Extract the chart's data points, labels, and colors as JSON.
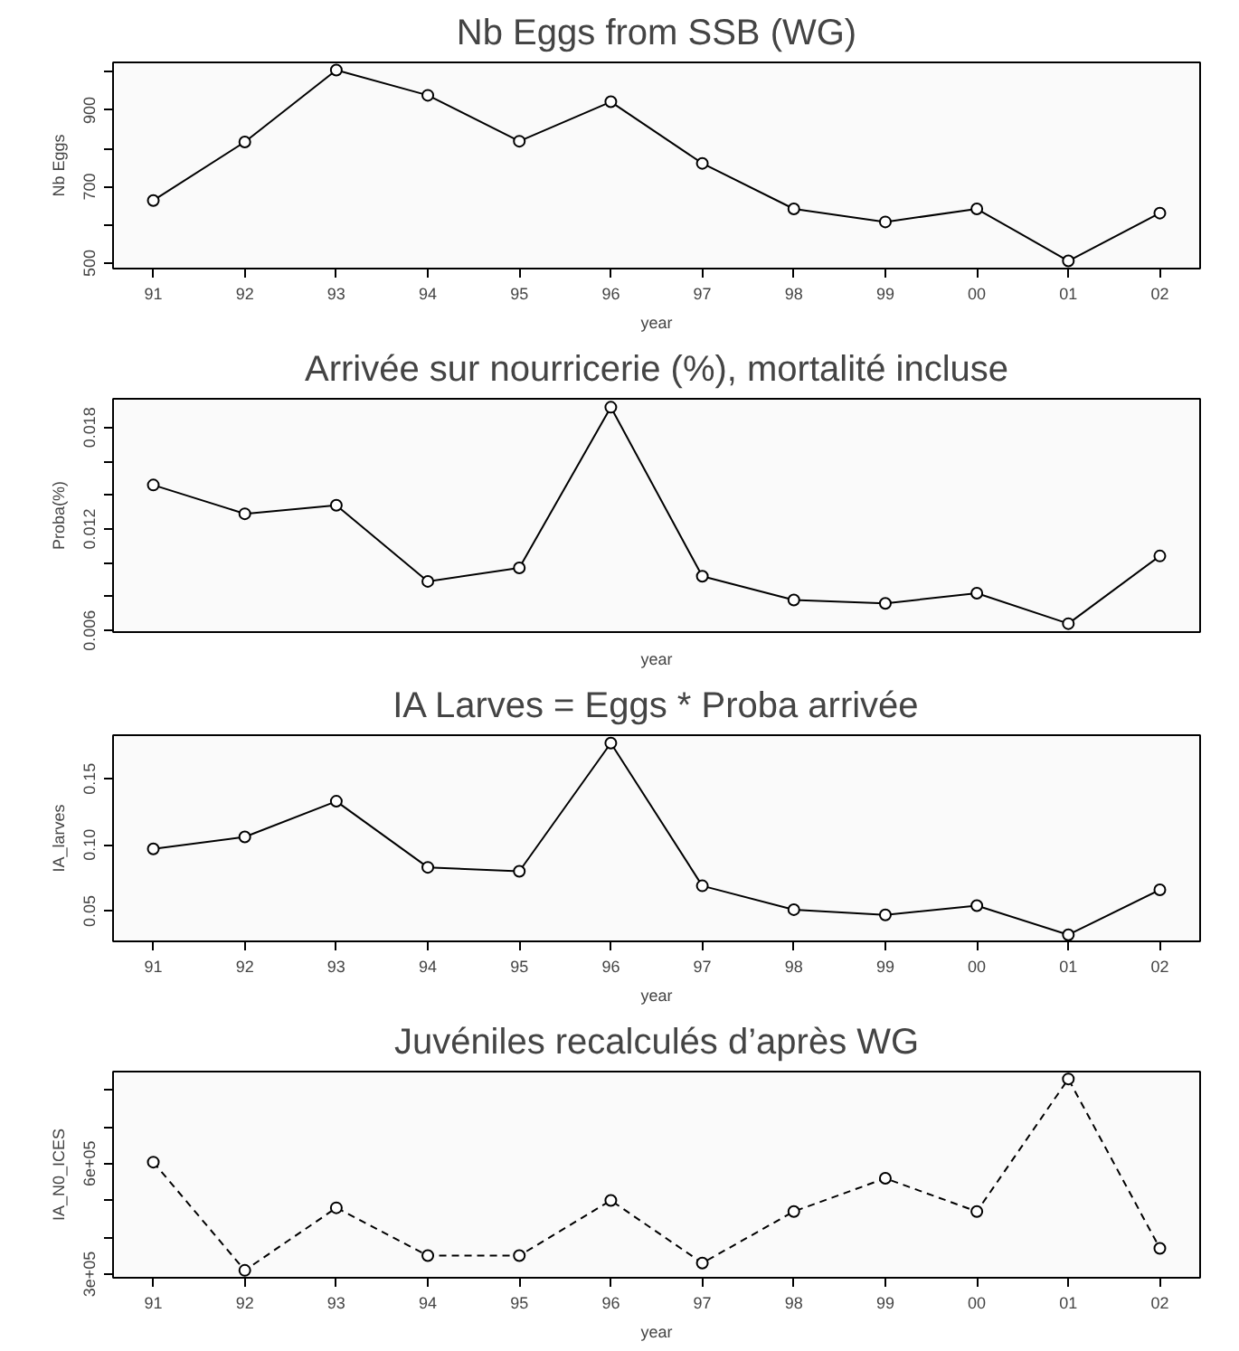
{
  "chart_data": [
    {
      "type": "line",
      "title": "Nb Eggs from SSB (WG)",
      "xlabel": "year",
      "ylabel": "Nb Eggs",
      "categories": [
        "91",
        "92",
        "93",
        "94",
        "95",
        "96",
        "97",
        "98",
        "99",
        "00",
        "01",
        "02"
      ],
      "series": [
        {
          "color": "#000000",
          "values": [
            664,
            817,
            1005,
            939,
            819,
            922,
            761,
            642,
            608,
            642,
            506,
            631
          ]
        }
      ],
      "ylim": [
        486,
        1025
      ],
      "yticks": [
        500,
        {
          "value": 600,
          "label": null
        },
        700,
        {
          "value": 800,
          "label": null
        },
        900,
        {
          "value": 1000,
          "label": null
        }
      ],
      "marker": "circle",
      "line_style": "solid",
      "grid": false
    },
    {
      "type": "line",
      "title": "Arrivée sur nourricerie (%), mortalité incluse",
      "xlabel": "year",
      "ylabel": "Proba(%)",
      "categories": [
        null,
        null,
        null,
        null,
        null,
        null,
        null,
        null,
        null,
        null,
        null,
        null
      ],
      "series": [
        {
          "color": "#000000",
          "values": [
            0.0146,
            0.0129,
            0.0134,
            0.0089,
            0.0097,
            0.0192,
            0.0092,
            0.0078,
            0.0076,
            0.0082,
            0.0064,
            0.0104
          ]
        }
      ],
      "ylim": [
        0.0059,
        0.0197
      ],
      "yticks": [
        0.006,
        {
          "value": 0.008,
          "label": null
        },
        {
          "value": 0.01,
          "label": null
        },
        0.012,
        {
          "value": 0.014,
          "label": null
        },
        {
          "value": 0.016,
          "label": null
        },
        0.018
      ],
      "tick_labels": "y",
      "marker": "circle",
      "line_style": "solid",
      "grid": false
    },
    {
      "type": "line",
      "title": "IA Larves = Eggs * Proba arrivée",
      "xlabel": "year",
      "ylabel": "IA_larves",
      "categories": [
        "91",
        "92",
        "93",
        "94",
        "95",
        "96",
        "97",
        "98",
        "99",
        "00",
        "01",
        "02"
      ],
      "series": [
        {
          "color": "#000000",
          "values": [
            0.097,
            0.106,
            0.133,
            0.083,
            0.08,
            0.177,
            0.069,
            0.051,
            0.047,
            0.054,
            0.032,
            0.066
          ]
        }
      ],
      "ylim": [
        0.027,
        0.183
      ],
      "yticks": [
        {
          "value": 0.05,
          "label": "0.05"
        },
        {
          "value": 0.1,
          "label": "0.10"
        },
        0.15
      ],
      "marker": "circle",
      "line_style": "solid",
      "grid": false
    },
    {
      "type": "line",
      "title": "Juvéniles recalculés d’après WG",
      "xlabel": "year",
      "ylabel": "IA_N0_ICES",
      "categories": [
        "91",
        "92",
        "93",
        "94",
        "95",
        "96",
        "97",
        "98",
        "99",
        "00",
        "01",
        "02"
      ],
      "series": [
        {
          "color": "#000000",
          "values": [
            604000,
            310000,
            480000,
            350000,
            350000,
            500000,
            330000,
            470000,
            560000,
            470000,
            830000,
            370000
          ]
        }
      ],
      "ylim": [
        290000,
        850000
      ],
      "yticks": [
        {
          "value": 300000,
          "label": "3e+05"
        },
        {
          "value": 400000,
          "label": null
        },
        {
          "value": 500000,
          "label": null
        },
        {
          "value": 600000,
          "label": "6e+05"
        },
        {
          "value": 700000,
          "label": null
        },
        {
          "value": 800000,
          "label": null
        }
      ],
      "marker": "circle",
      "line_style": "dashed",
      "grid": false
    }
  ]
}
